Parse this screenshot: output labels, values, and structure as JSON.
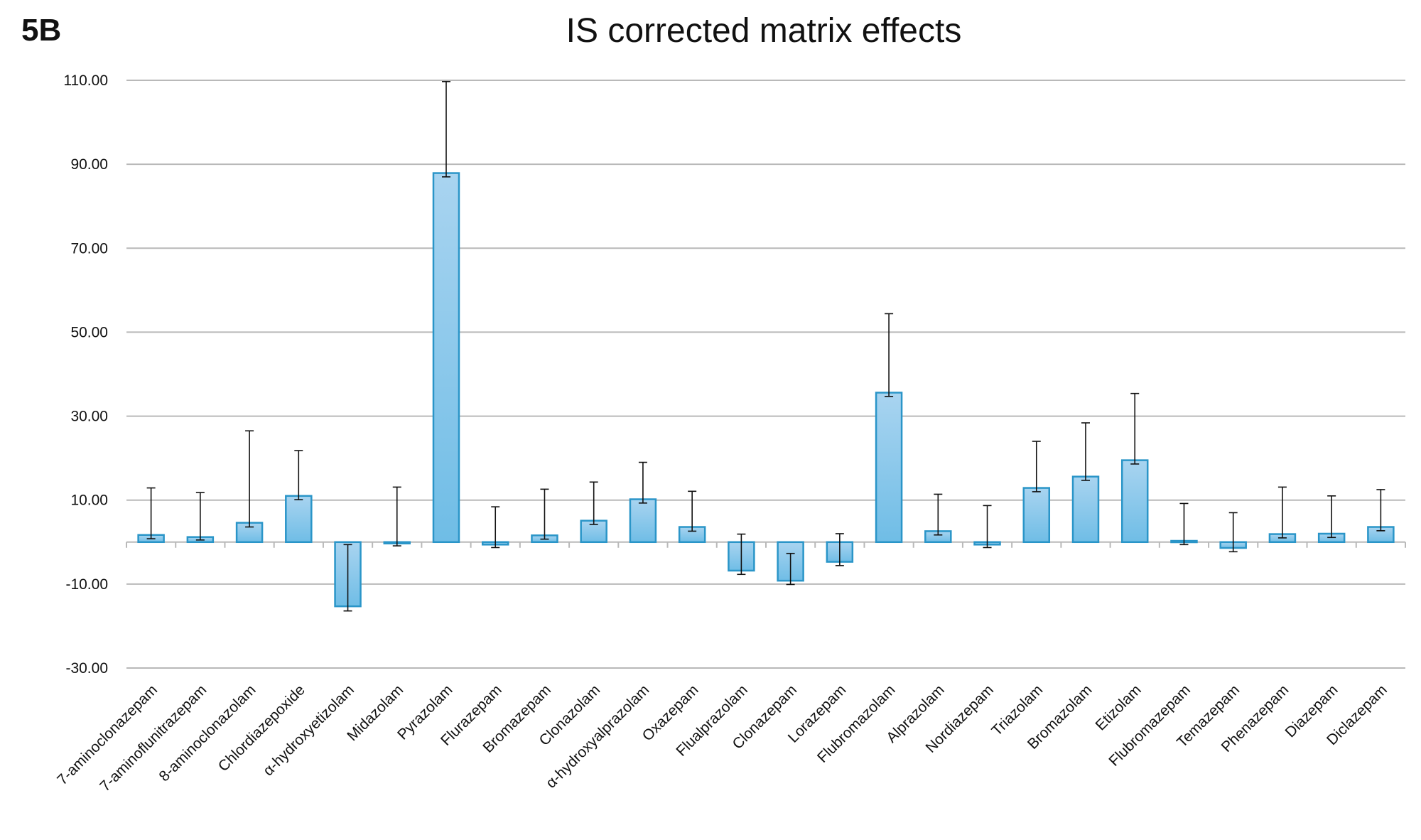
{
  "panel_label": "5B",
  "chart_data": {
    "type": "bar",
    "title": "IS corrected matrix effects",
    "xlabel": "",
    "ylabel": "",
    "ylim": [
      -30,
      110
    ],
    "yticks": [
      -30,
      -10,
      10,
      30,
      50,
      70,
      90,
      110
    ],
    "ytick_labels": [
      "-30.00",
      "-10.00",
      "10.00",
      "30.00",
      "50.00",
      "70.00",
      "90.00",
      "110.00"
    ],
    "categories": [
      "7-aminoclonazepam",
      "7-aminoflunitrazepam",
      "8-aminoclonazolam",
      "Chlordiazepoxide",
      "α-hydroxyetizolam",
      "Midazolam",
      "Pyrazolam",
      "Flurazepam",
      "Bromazepam",
      "Clonazolam",
      "α-hydroxyalprazolam",
      "Oxazepam",
      "Flualprazolam",
      "Clonazepam",
      "Lorazepam",
      "Flubromazolam",
      "Alprazolam",
      "Nordiazepam",
      "Triazolam",
      "Bromazolam",
      "Etizolam",
      "Flubromazepam",
      "Temazepam",
      "Phenazepam",
      "Diazepam",
      "Diclazepam"
    ],
    "values": [
      1.7,
      1.2,
      4.6,
      11.0,
      -15.3,
      0.0,
      87.9,
      -0.6,
      1.6,
      5.1,
      10.2,
      3.6,
      -6.8,
      -9.2,
      -4.7,
      35.6,
      2.6,
      -0.6,
      12.9,
      15.6,
      19.5,
      0.3,
      -1.4,
      1.9,
      2.0,
      3.6
    ],
    "error_low": [
      0.8,
      0.5,
      3.6,
      10.1,
      -16.4,
      -0.9,
      87.0,
      -1.3,
      0.7,
      4.2,
      9.3,
      2.6,
      -7.7,
      -10.1,
      -5.6,
      34.7,
      1.7,
      -1.3,
      12.0,
      14.7,
      18.6,
      -0.6,
      -2.3,
      1.0,
      1.1,
      2.7
    ],
    "error_high": [
      12.9,
      11.8,
      26.5,
      21.8,
      -0.6,
      13.1,
      109.7,
      8.4,
      12.6,
      14.3,
      19.0,
      12.1,
      1.9,
      -2.7,
      2.0,
      54.4,
      11.4,
      8.7,
      24.0,
      28.4,
      35.4,
      9.2,
      7.0,
      13.1,
      11.0,
      12.5
    ],
    "colors": {
      "bar_fill_top": "#a9d4f0",
      "bar_fill_bottom": "#6fbde6",
      "bar_stroke": "#2a95c8",
      "grid": "#b9b9b9",
      "error": "#111111"
    }
  }
}
